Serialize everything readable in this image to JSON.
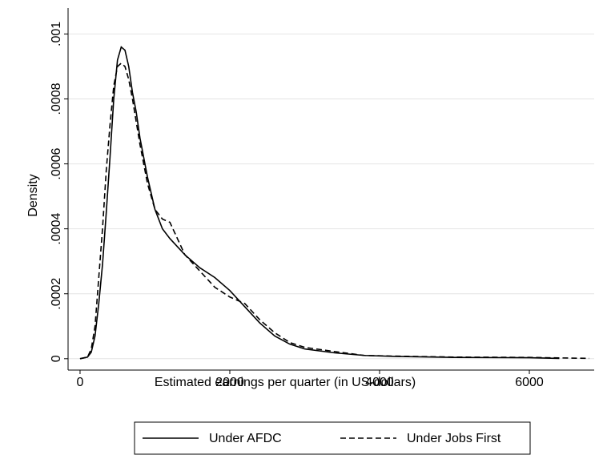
{
  "chart_data": {
    "type": "line",
    "xlabel": "Estimated earnings per quarter (in US-dollars)",
    "ylabel": "Density",
    "xlim": [
      -160,
      6866
    ],
    "ylim": [
      -3.5e-05,
      0.00108
    ],
    "xticks": [
      0,
      2000,
      4000,
      6000
    ],
    "yticks": [
      0,
      {
        "value": 0.0002,
        "label": ".0002"
      },
      {
        "value": 0.0004,
        "label": ".0004"
      },
      {
        "value": 0.0006,
        "label": ".0006"
      },
      {
        "value": 0.0008,
        "label": ".0008"
      },
      {
        "value": 0.001,
        "label": ".001"
      }
    ],
    "grid": true,
    "legend": "bottom",
    "series": [
      {
        "name": "Under AFDC",
        "color": "#000000",
        "linestyle": "solid",
        "x": [
          0,
          100,
          150,
          200,
          250,
          300,
          350,
          400,
          450,
          500,
          550,
          600,
          650,
          700,
          750,
          800,
          900,
          1000,
          1100,
          1200,
          1400,
          1600,
          1800,
          2000,
          2200,
          2400,
          2600,
          2800,
          3000,
          3400,
          3800,
          4200,
          5000,
          6000,
          6400
        ],
        "values": [
          0,
          5e-06,
          2e-05,
          7e-05,
          0.00017,
          0.00029,
          0.00045,
          0.00062,
          0.0008,
          0.00092,
          0.00096,
          0.00095,
          0.0009,
          0.00082,
          0.00076,
          0.00068,
          0.00056,
          0.00046,
          0.0004,
          0.00037,
          0.00032,
          0.00028,
          0.00025,
          0.00021,
          0.00016,
          0.00011,
          7e-05,
          4.5e-05,
          3e-05,
          1.8e-05,
          1e-05,
          7e-06,
          4e-06,
          3e-06,
          1e-06
        ]
      },
      {
        "name": "Under Jobs First",
        "color": "#000000",
        "linestyle": "dashed",
        "x": [
          0,
          100,
          150,
          200,
          250,
          300,
          350,
          400,
          450,
          500,
          550,
          600,
          650,
          700,
          800,
          900,
          1000,
          1100,
          1200,
          1300,
          1400,
          1600,
          1800,
          2000,
          2200,
          2400,
          2600,
          2800,
          3000,
          3400,
          3800,
          4200,
          5000,
          6000,
          6800
        ],
        "values": [
          0,
          5e-06,
          3e-05,
          0.0001,
          0.00025,
          0.0004,
          0.00058,
          0.00072,
          0.00084,
          0.0009,
          0.00091,
          0.0009,
          0.00086,
          0.0008,
          0.00066,
          0.00054,
          0.00046,
          0.00043,
          0.00042,
          0.00037,
          0.00032,
          0.00027,
          0.00022,
          0.00019,
          0.00017,
          0.00012,
          8e-05,
          5e-05,
          3.5e-05,
          2.2e-05,
          1e-05,
          8e-06,
          5e-06,
          4e-06,
          1e-06
        ]
      }
    ]
  }
}
